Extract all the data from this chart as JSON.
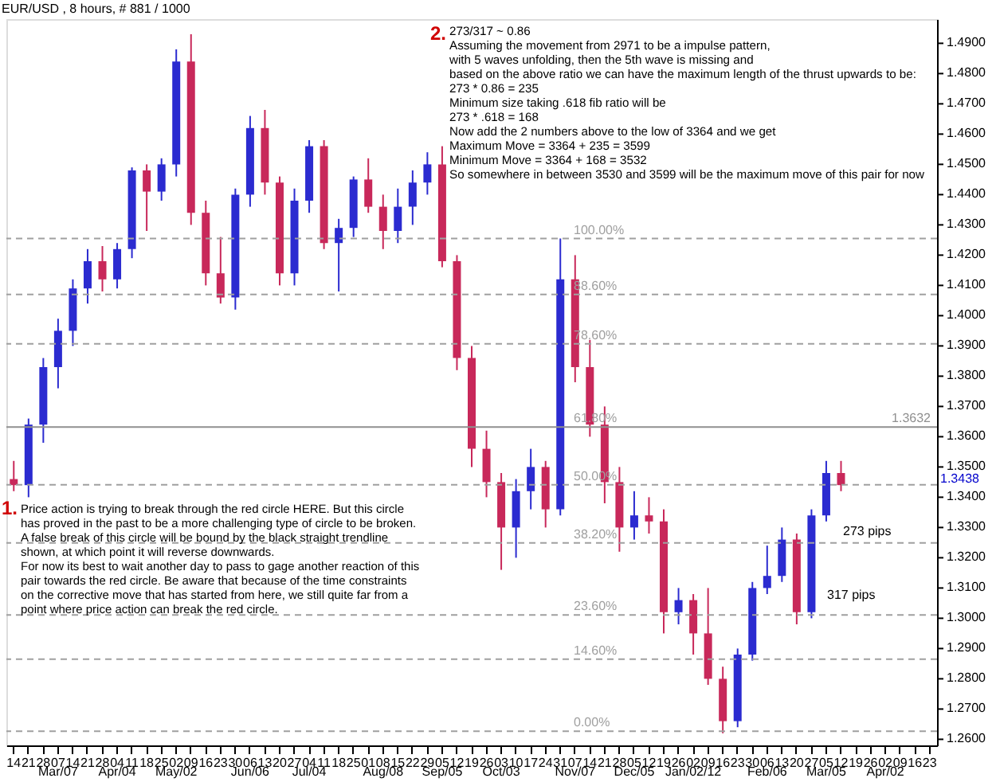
{
  "chart_data": {
    "type": "candlestick",
    "title": "EUR/USD , 8 hours, # 881 / 1000",
    "categories": [
      "14",
      "21",
      "28",
      "07\nMar/07",
      "14",
      "21",
      "28",
      "04\nApr/04",
      "11",
      "18",
      "25",
      "02\nMay/02",
      "09",
      "16",
      "23",
      "30",
      "06\nJun/06",
      "13",
      "20",
      "27",
      "04\nJul/04",
      "11",
      "18",
      "25",
      "01",
      "08\nAug/08",
      "15",
      "22",
      "29",
      "05\nSep/05",
      "12",
      "19",
      "26",
      "03\nOct/03",
      "10",
      "17",
      "24",
      "31",
      "07\nNov/07",
      "14",
      "21",
      "28",
      "05\nDec/05",
      "12",
      "19",
      "26",
      "02\nJan/02/12",
      "09",
      "16",
      "23",
      "30",
      "06\nFeb/06",
      "13",
      "20",
      "27",
      "05\nMar/05",
      "12",
      "19",
      "26",
      "02\nApr/02",
      "09",
      "16",
      "23"
    ],
    "ohlc": [
      [
        1.346,
        1.352,
        1.342,
        1.344
      ],
      [
        1.344,
        1.366,
        1.34,
        1.364
      ],
      [
        1.364,
        1.386,
        1.358,
        1.383
      ],
      [
        1.383,
        1.399,
        1.376,
        1.395
      ],
      [
        1.395,
        1.412,
        1.39,
        1.409
      ],
      [
        1.409,
        1.422,
        1.404,
        1.418
      ],
      [
        1.418,
        1.423,
        1.408,
        1.412
      ],
      [
        1.412,
        1.424,
        1.409,
        1.422
      ],
      [
        1.422,
        1.449,
        1.419,
        1.448
      ],
      [
        1.448,
        1.45,
        1.428,
        1.441
      ],
      [
        1.441,
        1.452,
        1.438,
        1.45
      ],
      [
        1.45,
        1.488,
        1.446,
        1.484
      ],
      [
        1.484,
        1.493,
        1.43,
        1.434
      ],
      [
        1.434,
        1.438,
        1.41,
        1.414
      ],
      [
        1.414,
        1.426,
        1.404,
        1.406
      ],
      [
        1.406,
        1.442,
        1.402,
        1.44
      ],
      [
        1.44,
        1.466,
        1.436,
        1.462
      ],
      [
        1.462,
        1.468,
        1.44,
        1.444
      ],
      [
        1.444,
        1.446,
        1.41,
        1.414
      ],
      [
        1.414,
        1.442,
        1.41,
        1.438
      ],
      [
        1.438,
        1.458,
        1.434,
        1.456
      ],
      [
        1.456,
        1.458,
        1.422,
        1.424
      ],
      [
        1.424,
        1.432,
        1.408,
        1.429
      ],
      [
        1.429,
        1.446,
        1.426,
        1.445
      ],
      [
        1.445,
        1.452,
        1.434,
        1.436
      ],
      [
        1.436,
        1.44,
        1.422,
        1.428
      ],
      [
        1.428,
        1.442,
        1.424,
        1.436
      ],
      [
        1.436,
        1.448,
        1.43,
        1.444
      ],
      [
        1.444,
        1.454,
        1.44,
        1.45
      ],
      [
        1.45,
        1.456,
        1.416,
        1.418
      ],
      [
        1.418,
        1.42,
        1.382,
        1.386
      ],
      [
        1.386,
        1.39,
        1.35,
        1.356
      ],
      [
        1.356,
        1.362,
        1.34,
        1.345
      ],
      [
        1.345,
        1.348,
        1.316,
        1.33
      ],
      [
        1.33,
        1.346,
        1.32,
        1.342
      ],
      [
        1.342,
        1.356,
        1.336,
        1.35
      ],
      [
        1.35,
        1.352,
        1.33,
        1.336
      ],
      [
        1.336,
        1.4255,
        1.334,
        1.412
      ],
      [
        1.412,
        1.42,
        1.378,
        1.383
      ],
      [
        1.383,
        1.392,
        1.36,
        1.364
      ],
      [
        1.364,
        1.37,
        1.338,
        1.345
      ],
      [
        1.345,
        1.35,
        1.322,
        1.33
      ],
      [
        1.33,
        1.342,
        1.326,
        1.334
      ],
      [
        1.334,
        1.34,
        1.328,
        1.332
      ],
      [
        1.332,
        1.336,
        1.295,
        1.302
      ],
      [
        1.302,
        1.31,
        1.298,
        1.306
      ],
      [
        1.306,
        1.308,
        1.288,
        1.295
      ],
      [
        1.295,
        1.31,
        1.278,
        1.28
      ],
      [
        1.28,
        1.284,
        1.262,
        1.266
      ],
      [
        1.266,
        1.29,
        1.264,
        1.288
      ],
      [
        1.288,
        1.312,
        1.286,
        1.31
      ],
      [
        1.31,
        1.324,
        1.308,
        1.314
      ],
      [
        1.314,
        1.33,
        1.312,
        1.326
      ],
      [
        1.326,
        1.328,
        1.298,
        1.302
      ],
      [
        1.302,
        1.336,
        1.3,
        1.334
      ],
      [
        1.334,
        1.352,
        1.332,
        1.348
      ],
      [
        1.348,
        1.352,
        1.342,
        1.344
      ],
      null,
      null,
      null,
      null,
      null,
      null
    ],
    "colors": [
      "#c8285a",
      "#2b2bd0",
      "#2b2bd0",
      "#2b2bd0",
      "#2b2bd0",
      "#2b2bd0",
      "#c8285a",
      "#2b2bd0",
      "#2b2bd0",
      "#c8285a",
      "#2b2bd0",
      "#2b2bd0",
      "#c8285a",
      "#c8285a",
      "#c8285a",
      "#2b2bd0",
      "#2b2bd0",
      "#c8285a",
      "#c8285a",
      "#2b2bd0",
      "#2b2bd0",
      "#c8285a",
      "#2b2bd0",
      "#2b2bd0",
      "#c8285a",
      "#c8285a",
      "#2b2bd0",
      "#2b2bd0",
      "#2b2bd0",
      "#c8285a",
      "#c8285a",
      "#c8285a",
      "#c8285a",
      "#c8285a",
      "#2b2bd0",
      "#2b2bd0",
      "#c8285a",
      "#2b2bd0",
      "#c8285a",
      "#c8285a",
      "#c8285a",
      "#c8285a",
      "#2b2bd0",
      "#c8285a",
      "#c8285a",
      "#2b2bd0",
      "#c8285a",
      "#c8285a",
      "#c8285a",
      "#2b2bd0",
      "#2b2bd0",
      "#2b2bd0",
      "#2b2bd0",
      "#c8285a",
      "#2b2bd0",
      "#2b2bd0",
      "#c8285a",
      null,
      null,
      null,
      null,
      null,
      null
    ],
    "ylim": [
      1.258,
      1.498
    ],
    "yticks": [
      {
        "value": 1.26,
        "label": "1.2600"
      },
      {
        "value": 1.27,
        "label": "1.2700"
      },
      {
        "value": 1.28,
        "label": "1.2800"
      },
      {
        "value": 1.29,
        "label": "1.2900"
      },
      {
        "value": 1.3,
        "label": "1.3000"
      },
      {
        "value": 1.31,
        "label": "1.3100"
      },
      {
        "value": 1.32,
        "label": "1.3200"
      },
      {
        "value": 1.33,
        "label": "1.3300"
      },
      {
        "value": 1.34,
        "label": "1.3400"
      },
      {
        "value": 1.35,
        "label": "1.3500"
      },
      {
        "value": 1.36,
        "label": "1.3600"
      },
      {
        "value": 1.37,
        "label": "1.3700"
      },
      {
        "value": 1.38,
        "label": "1.3800"
      },
      {
        "value": 1.39,
        "label": "1.3900"
      },
      {
        "value": 1.4,
        "label": "1.4000"
      },
      {
        "value": 1.41,
        "label": "1.4100"
      },
      {
        "value": 1.42,
        "label": "1.4200"
      },
      {
        "value": 1.43,
        "label": "1.4300"
      },
      {
        "value": 1.44,
        "label": "1.4400"
      },
      {
        "value": 1.45,
        "label": "1.4500"
      },
      {
        "value": 1.46,
        "label": "1.4600"
      },
      {
        "value": 1.47,
        "label": "1.4700"
      },
      {
        "value": 1.48,
        "label": "1.4800"
      },
      {
        "value": 1.49,
        "label": "1.4900"
      }
    ],
    "ref_lines": [
      {
        "axis": "y",
        "value": 1.4255,
        "color": "#a0a0a0",
        "line_style": "dashed"
      },
      {
        "axis": "y",
        "value": 1.407,
        "color": "#a0a0a0",
        "line_style": "dashed"
      },
      {
        "axis": "y",
        "value": 1.3907,
        "color": "#a0a0a0",
        "line_style": "dashed"
      },
      {
        "axis": "y",
        "value": 1.3441,
        "color": "#a0a0a0",
        "line_style": "dashed"
      },
      {
        "axis": "y",
        "value": 1.3249,
        "color": "#a0a0a0",
        "line_style": "dashed"
      },
      {
        "axis": "y",
        "value": 1.3011,
        "color": "#a0a0a0",
        "line_style": "dashed"
      },
      {
        "axis": "y",
        "value": 1.2865,
        "color": "#a0a0a0",
        "line_style": "dashed"
      },
      {
        "axis": "y",
        "value": 1.2627,
        "color": "#a0a0a0",
        "line_style": "dashed"
      },
      {
        "axis": "y",
        "value": 1.3632,
        "label": "1.3632",
        "color": "#909090",
        "line_style": "solid"
      }
    ],
    "annotations": [
      "2.",
      "273/317 ~ 0.86\nAssuming the movement from 2971 to be a impulse pattern,\nwith 5 waves unfolding, then the 5th wave is missing and\nbased on the above ratio we can have the maximum length of the thrust upwards to be:\n273 * 0.86 = 235\nMinimum size taking .618 fib ratio will be\n273 * .618 = 168\nNow add the 2 numbers above to the low of 3364 and we get\nMaximum Move = 3364 + 235 =  3599\nMinimum Move = 3364 + 168 =   3532\nSo somewhere in between 3530 and  3599 will be the maximum move of this pair for now",
      "1.",
      "Price action is trying to break through the red circle HERE.  But this circle\nhas proved in the past to be a more challenging type of circle to be broken.\nA false break     of this circle will be bound by the black straight trendline\nshown, at which point it will reverse downwards.\n\nFor now its best to wait another day to pass to gage another reaction of this\npair towards the red circle.  Be aware that because of the time constraints\non the corrective move that has started from here, we still quite far from a\npoint where price action can break the red circle.",
      "273 pips",
      "317 pips",
      "1.3438",
      {
        "text": "100.00%",
        "y": 1.4255
      },
      {
        "text": "88.60%",
        "y": 1.407
      },
      {
        "text": "78.60%",
        "y": 1.3907
      },
      {
        "text": "61.80%",
        "y": 1.3632
      },
      {
        "text": "50.00%",
        "y": 1.3441
      },
      {
        "text": "38.20%",
        "y": 1.3249
      },
      {
        "text": "23.60%",
        "y": 1.3011
      },
      {
        "text": "14.60%",
        "y": 1.2865
      },
      {
        "text": "0.00%",
        "y": 1.2627
      }
    ]
  }
}
